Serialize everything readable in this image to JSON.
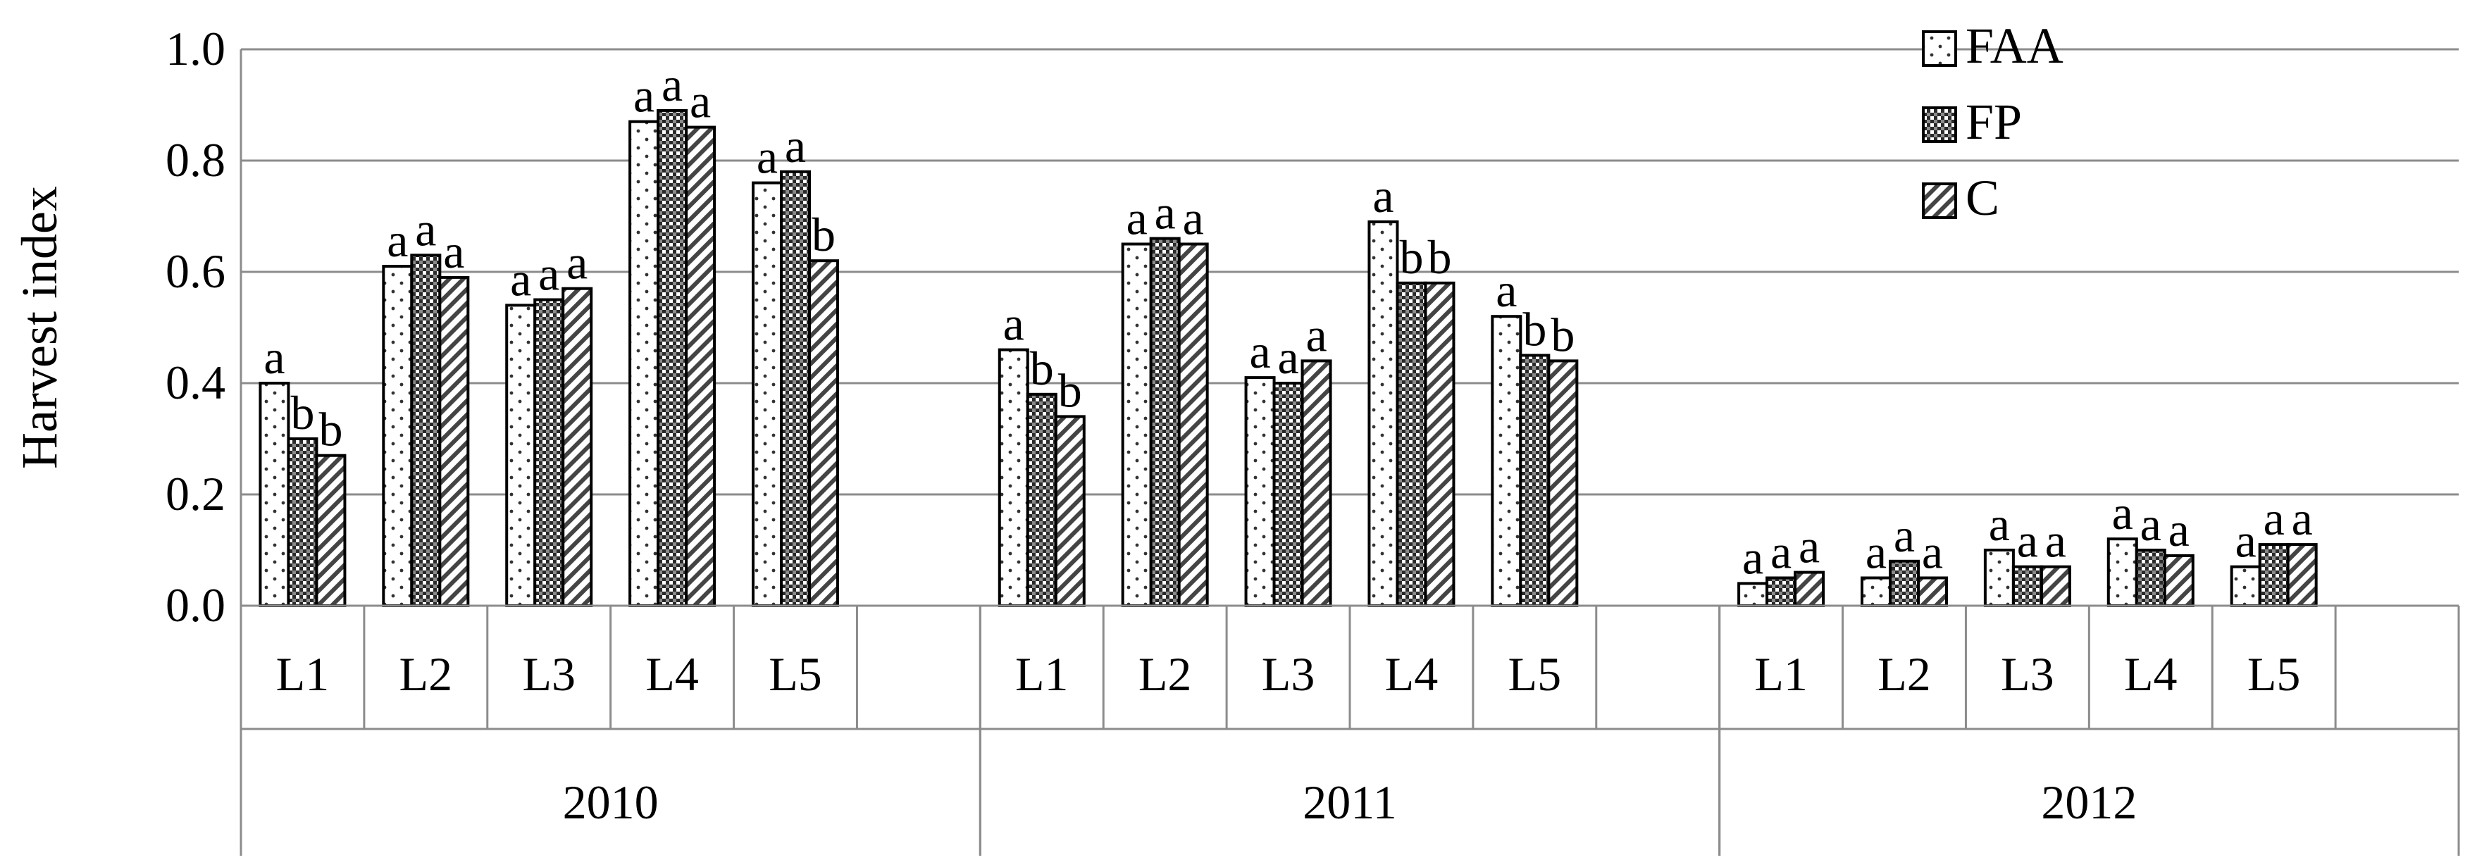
{
  "chart_data": {
    "type": "bar",
    "ylabel": "Harvest index",
    "ylim": [
      0,
      1.0
    ],
    "yticks": [
      "0.0",
      "0.2",
      "0.4",
      "0.6",
      "0.8",
      "1.0"
    ],
    "ytick_values": [
      0,
      0.2,
      0.4,
      0.6,
      0.8,
      1.0
    ],
    "grid": true,
    "legend_position": "top-right",
    "groups": [
      {
        "year": "2010",
        "categories": [
          "L1",
          "L2",
          "L3",
          "L4",
          "L5"
        ],
        "series": [
          {
            "name": "FAA",
            "values": [
              0.4,
              0.61,
              0.54,
              0.87,
              0.76
            ],
            "labels": [
              "a",
              "a",
              "a",
              "a",
              "a"
            ]
          },
          {
            "name": "FP",
            "values": [
              0.3,
              0.63,
              0.55,
              0.89,
              0.78
            ],
            "labels": [
              "b",
              "a",
              "a",
              "a",
              "a"
            ]
          },
          {
            "name": "C",
            "values": [
              0.27,
              0.59,
              0.57,
              0.86,
              0.62
            ],
            "labels": [
              "b",
              "a",
              "a",
              "a",
              "b"
            ]
          }
        ]
      },
      {
        "year": "2011",
        "categories": [
          "L1",
          "L2",
          "L3",
          "L4",
          "L5"
        ],
        "series": [
          {
            "name": "FAA",
            "values": [
              0.46,
              0.65,
              0.41,
              0.69,
              0.52
            ],
            "labels": [
              "a",
              "a",
              "a",
              "a",
              "a"
            ]
          },
          {
            "name": "FP",
            "values": [
              0.38,
              0.66,
              0.4,
              0.58,
              0.45
            ],
            "labels": [
              "b",
              "a",
              "a",
              "b",
              "b"
            ]
          },
          {
            "name": "C",
            "values": [
              0.34,
              0.65,
              0.44,
              0.58,
              0.44
            ],
            "labels": [
              "b",
              "a",
              "a",
              "b",
              "b"
            ]
          }
        ]
      },
      {
        "year": "2012",
        "categories": [
          "L1",
          "L2",
          "L3",
          "L4",
          "L5"
        ],
        "series": [
          {
            "name": "FAA",
            "values": [
              0.04,
              0.05,
              0.1,
              0.12,
              0.07
            ],
            "labels": [
              "a",
              "a",
              "a",
              "a",
              "a"
            ]
          },
          {
            "name": "FP",
            "values": [
              0.05,
              0.08,
              0.07,
              0.1,
              0.11
            ],
            "labels": [
              "a",
              "a",
              "a",
              "a",
              "a"
            ]
          },
          {
            "name": "C",
            "values": [
              0.06,
              0.05,
              0.07,
              0.09,
              0.11
            ],
            "labels": [
              "a",
              "a",
              "a",
              "a",
              "a"
            ]
          }
        ]
      }
    ],
    "legend": [
      {
        "name": "FAA",
        "pattern": "dots"
      },
      {
        "name": "FP",
        "pattern": "checker"
      },
      {
        "name": "C",
        "pattern": "diagonal"
      }
    ]
  }
}
